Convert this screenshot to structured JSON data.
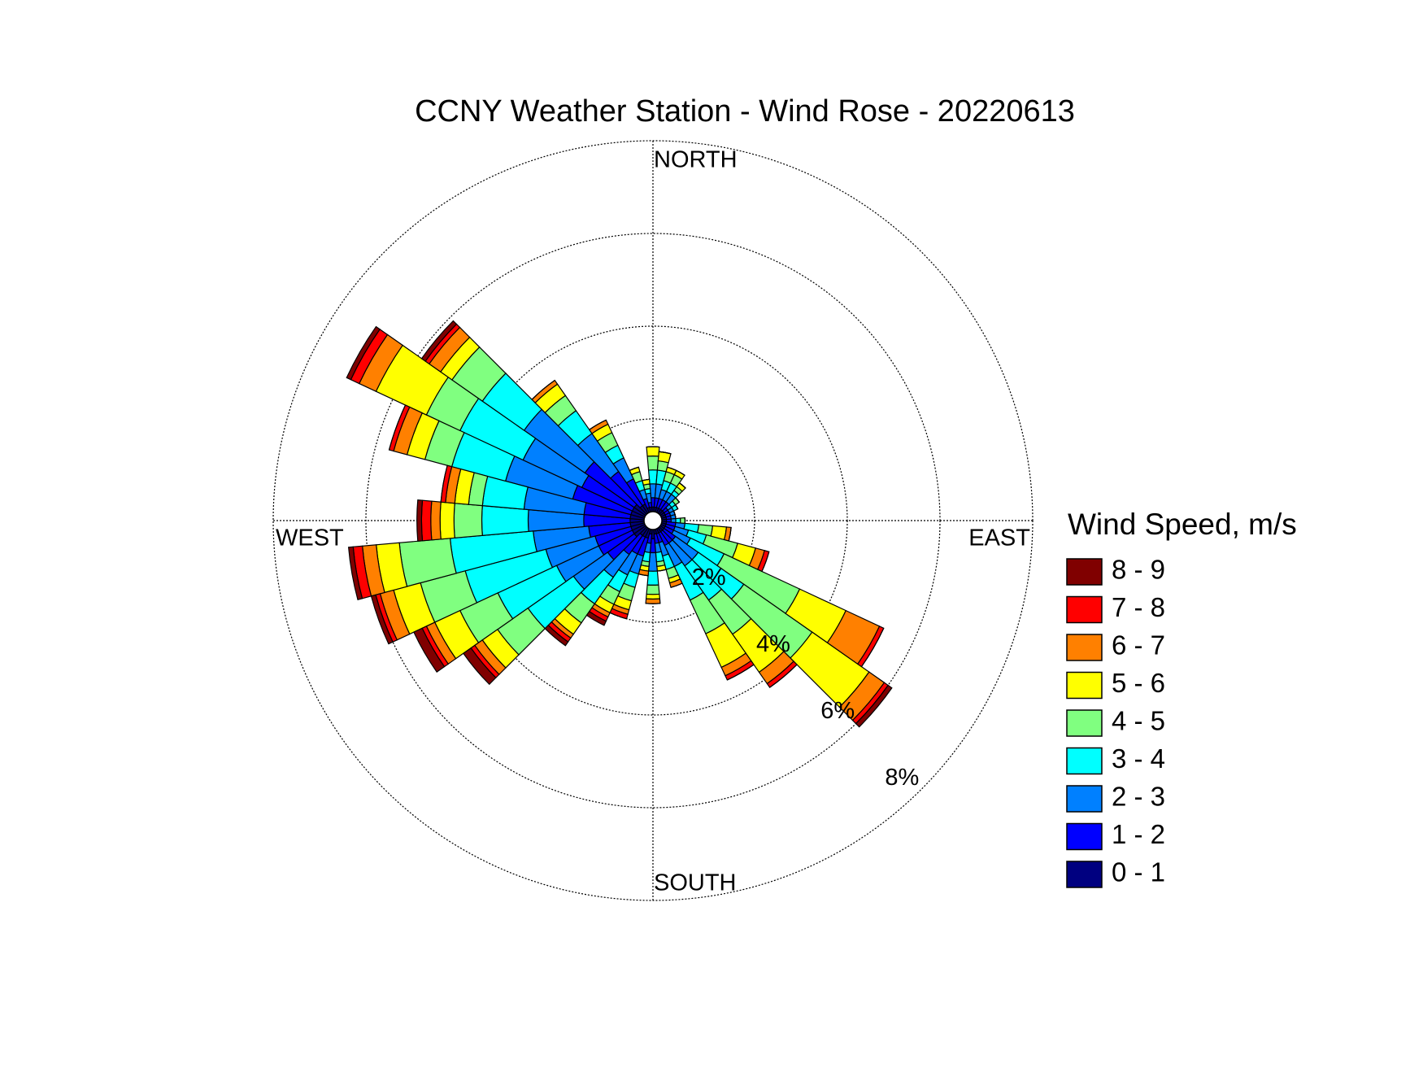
{
  "chart_data": {
    "type": "windrose",
    "title": "CCNY Weather Station - Wind Rose - 20220613",
    "compass": {
      "north": "NORTH",
      "east": "EAST",
      "south": "SOUTH",
      "west": "WEST"
    },
    "legend_title": "Wind Speed, m/s",
    "x": [
      0,
      10,
      20,
      30,
      40,
      50,
      60,
      70,
      80,
      90,
      100,
      110,
      120,
      130,
      140,
      150,
      160,
      170,
      180,
      190,
      200,
      210,
      220,
      230,
      240,
      250,
      260,
      270,
      280,
      290,
      300,
      310,
      320,
      330,
      340,
      350
    ],
    "rlim": [
      0,
      8
    ],
    "rticks": [
      {
        "value": 2,
        "label": "2%"
      },
      {
        "value": 4,
        "label": "4%"
      },
      {
        "value": 6,
        "label": "6%"
      },
      {
        "value": 8,
        "label": "8%"
      }
    ],
    "grid": true,
    "series": [
      {
        "name": "0 - 1",
        "color": "#000080",
        "values": [
          0.1,
          0.1,
          0.1,
          0.1,
          0.1,
          0.1,
          0.1,
          0.1,
          0.1,
          0.1,
          0.1,
          0.1,
          0.1,
          0.1,
          0.1,
          0.1,
          0.1,
          0.1,
          0.2,
          0.1,
          0.2,
          0.2,
          0.2,
          0.3,
          0.3,
          0.3,
          0.3,
          0.3,
          0.3,
          0.3,
          0.3,
          0.3,
          0.2,
          0.2,
          0.1,
          0.1
        ]
      },
      {
        "name": "1 - 2",
        "color": "#0000ff",
        "values": [
          0.2,
          0.2,
          0.2,
          0.2,
          0.2,
          0.1,
          0.1,
          0.1,
          0.1,
          0.1,
          0.2,
          0.2,
          0.2,
          0.3,
          0.3,
          0.3,
          0.2,
          0.2,
          0.3,
          0.2,
          0.4,
          0.4,
          0.5,
          0.7,
          0.8,
          0.8,
          0.9,
          1.0,
          1.0,
          1.3,
          1.2,
          1.3,
          0.9,
          0.6,
          0.2,
          0.1
        ]
      },
      {
        "name": "2 - 3",
        "color": "#0080ff",
        "values": [
          0.3,
          0.3,
          0.2,
          0.2,
          0.2,
          0.1,
          0.1,
          0.1,
          0.1,
          0.1,
          0.2,
          0.3,
          0.4,
          0.6,
          0.6,
          0.5,
          0.3,
          0.2,
          0.4,
          0.2,
          0.4,
          0.5,
          0.6,
          0.9,
          1.0,
          1.1,
          1.2,
          1.2,
          1.3,
          1.5,
          1.4,
          1.6,
          1.0,
          0.5,
          0.2,
          0.2
        ]
      },
      {
        "name": "3 - 4",
        "color": "#00ffff",
        "values": [
          0.3,
          0.3,
          0.2,
          0.2,
          0.1,
          0.1,
          0.1,
          0,
          0,
          0.1,
          0.3,
          0.4,
          0.8,
          1.2,
          0.9,
          0.8,
          0.3,
          0.2,
          0.3,
          0.2,
          0.3,
          0.4,
          0.7,
          1.2,
          1.4,
          1.8,
          1.8,
          1.0,
          0.9,
          1.2,
          1.5,
          1.1,
          0.6,
          0.3,
          0.2,
          0.1
        ]
      },
      {
        "name": "4 - 5",
        "color": "#80ff80",
        "values": [
          0.3,
          0.2,
          0.2,
          0.2,
          0.1,
          0.1,
          0,
          0,
          0,
          0.1,
          0.3,
          0.7,
          1.8,
          1.8,
          0.9,
          0.8,
          0.2,
          0.1,
          0.2,
          0.1,
          0.3,
          0.3,
          0.5,
          0.8,
          0.9,
          1.0,
          1.1,
          0.6,
          0.3,
          0.6,
          0.8,
          0.8,
          0.4,
          0.3,
          0.2,
          0.1
        ]
      },
      {
        "name": "5 - 6",
        "color": "#ffff00",
        "values": [
          0.2,
          0.2,
          0.1,
          0.1,
          0.1,
          0,
          0,
          0,
          0,
          0,
          0.3,
          0.4,
          1.1,
          1.5,
          1.0,
          0.8,
          0.1,
          0.1,
          0.1,
          0.1,
          0.2,
          0.2,
          0.3,
          0.4,
          0.6,
          0.6,
          0.5,
          0.3,
          0.3,
          0.4,
          1.2,
          0.3,
          0.3,
          0.2,
          0.1,
          0.1
        ]
      },
      {
        "name": "6 - 7",
        "color": "#ff8000",
        "values": [
          0,
          0,
          0,
          0,
          0,
          0,
          0,
          0,
          0,
          0,
          0.1,
          0.2,
          0.8,
          0.4,
          0.3,
          0.2,
          0.1,
          0,
          0.1,
          0.1,
          0.1,
          0.1,
          0.1,
          0.2,
          0.2,
          0.3,
          0.3,
          0.2,
          0.2,
          0.3,
          0.4,
          0.3,
          0.1,
          0.1,
          0,
          0
        ]
      },
      {
        "name": "7 - 8",
        "color": "#ff0000",
        "values": [
          0,
          0,
          0,
          0,
          0,
          0,
          0,
          0,
          0,
          0,
          0,
          0.1,
          0.1,
          0.1,
          0.1,
          0.1,
          0,
          0,
          0,
          0,
          0.1,
          0.1,
          0.1,
          0.1,
          0.1,
          0.1,
          0.2,
          0.2,
          0.1,
          0.1,
          0.2,
          0.1,
          0,
          0,
          0,
          0
        ]
      },
      {
        "name": "8 - 9",
        "color": "#800000",
        "values": [
          0,
          0,
          0,
          0,
          0,
          0,
          0,
          0,
          0,
          0,
          0,
          0,
          0,
          0.1,
          0,
          0,
          0,
          0,
          0,
          0,
          0,
          0.1,
          0.1,
          0.2,
          0.2,
          0.1,
          0.1,
          0.1,
          0,
          0,
          0.1,
          0.1,
          0,
          0,
          0,
          0
        ]
      }
    ]
  }
}
